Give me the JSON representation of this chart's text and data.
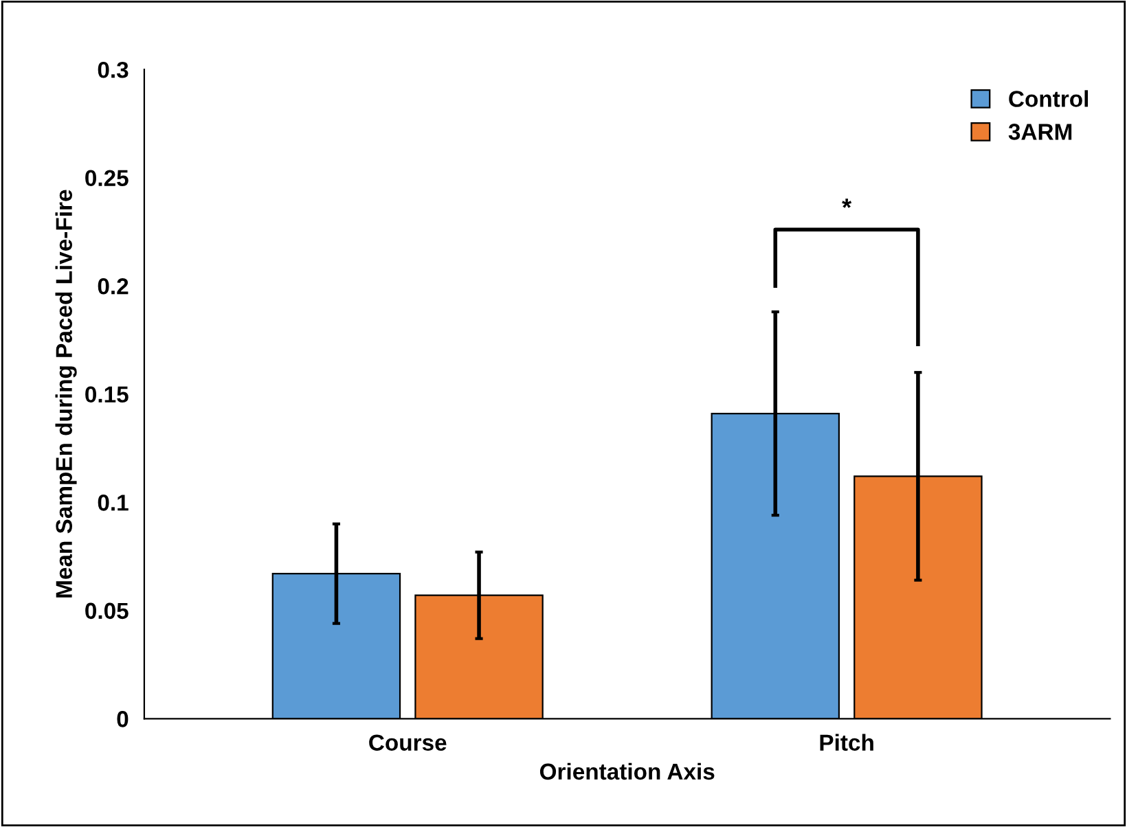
{
  "chart_data": {
    "type": "bar",
    "xlabel": "Orientation Axis",
    "ylabel": "Mean SampEn during Paced Live-Fire",
    "categories": [
      "Course",
      "Pitch"
    ],
    "series": [
      {
        "name": "Control",
        "color": "#5b9bd5",
        "values": [
          0.067,
          0.141
        ],
        "errors": [
          0.023,
          0.047
        ]
      },
      {
        "name": "3ARM",
        "color": "#ed7d31",
        "values": [
          0.057,
          0.112
        ],
        "errors": [
          0.02,
          0.048
        ]
      }
    ],
    "ylim": [
      0,
      0.3
    ],
    "yticks": [
      {
        "value": 0,
        "label": "0"
      },
      0.05,
      0.1,
      0.15,
      0.2,
      0.25,
      0.3
    ],
    "annotations": [
      "*"
    ],
    "legend": "top right",
    "grid": false
  }
}
